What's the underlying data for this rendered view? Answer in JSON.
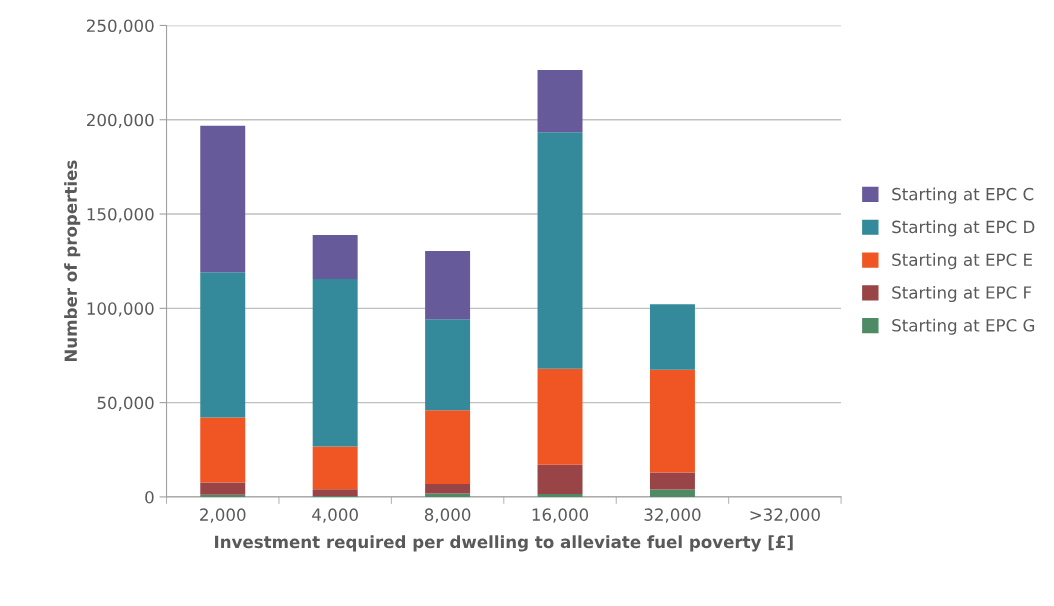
{
  "chart_data": {
    "type": "bar",
    "stacked": true,
    "xlabel": "Investment required per dwelling to alleviate fuel poverty [£]",
    "ylabel": "Number of properties",
    "categories": [
      "2,000",
      "4,000",
      "8,000",
      "16,000",
      "32,000",
      ">32,000"
    ],
    "series": [
      {
        "name": "Starting at EPC G",
        "color": "#4e8a64",
        "values": [
          1200,
          500,
          1800,
          1600,
          3900,
          0
        ]
      },
      {
        "name": "Starting at EPC F",
        "color": "#994446",
        "values": [
          6400,
          3600,
          5100,
          15400,
          9000,
          0
        ]
      },
      {
        "name": "Starting at EPC E",
        "color": "#ef5623",
        "values": [
          34500,
          22600,
          39100,
          50900,
          54500,
          0
        ]
      },
      {
        "name": "Starting at EPC D",
        "color": "#348a9a",
        "values": [
          77000,
          88900,
          48200,
          125500,
          34700,
          0
        ]
      },
      {
        "name": "Starting at EPC C",
        "color": "#675a9a",
        "values": [
          77700,
          23300,
          36200,
          33000,
          0,
          0
        ]
      }
    ],
    "ylim": [
      0,
      250000
    ],
    "yticks": [
      {
        "value": 0,
        "label": "0"
      },
      {
        "value": 50000,
        "label": "50,000"
      },
      {
        "value": 100000,
        "label": "100,000"
      },
      {
        "value": 150000,
        "label": "150,000"
      },
      {
        "value": 200000,
        "label": "200,000"
      },
      {
        "value": 250000,
        "label": "250,000"
      }
    ],
    "grid": "y",
    "legend": "right"
  }
}
